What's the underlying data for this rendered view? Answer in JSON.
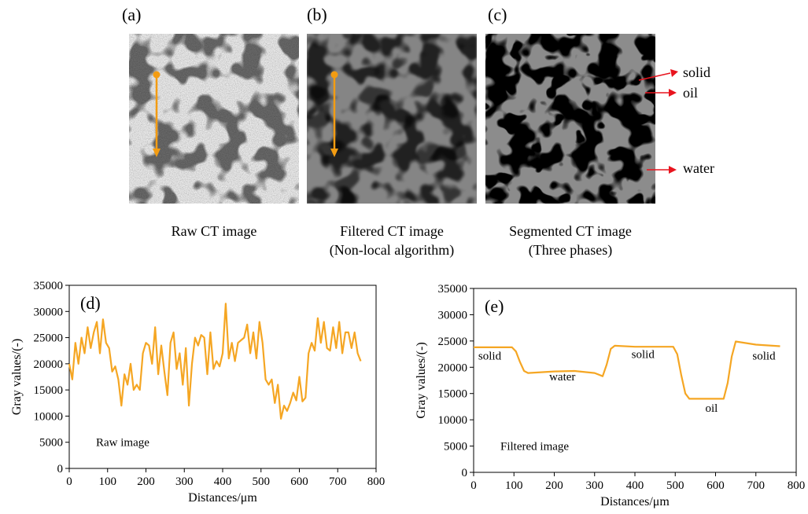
{
  "panels": {
    "a": {
      "letter": "(a)",
      "caption": "Raw CT image"
    },
    "b": {
      "letter": "(b)",
      "caption_line1": "Filtered CT image",
      "caption_line2": "(Non-local algorithm)"
    },
    "c": {
      "letter": "(c)",
      "caption_line1": "Segmented CT image",
      "caption_line2": "(Three phases)",
      "labels": [
        "solid",
        "oil",
        "water"
      ]
    }
  },
  "colors": {
    "arrow": "#F39C12",
    "line": "#F5A623",
    "solid": "#8C8C8C",
    "water": "#0A14F0",
    "oil": "#F01428",
    "label_arrow": "#E8141E"
  },
  "chart_data": [
    {
      "type": "line",
      "panel_letter": "(d)",
      "annotation": "Raw image",
      "title": "",
      "xlabel": "Distances/μm",
      "ylabel": "Gray values/(-)",
      "xlim": [
        0,
        800
      ],
      "ylim": [
        0,
        35000
      ],
      "xticks": [
        0,
        100,
        200,
        300,
        400,
        500,
        600,
        700,
        800
      ],
      "yticks": [
        0,
        5000,
        10000,
        15000,
        20000,
        25000,
        30000,
        35000
      ],
      "series": [
        {
          "x": [
            0,
            8,
            16,
            24,
            32,
            40,
            48,
            56,
            64,
            72,
            80,
            88,
            96,
            104,
            112,
            120,
            128,
            136,
            144,
            152,
            160,
            168,
            176,
            184,
            192,
            200,
            208,
            216,
            224,
            232,
            240,
            248,
            256,
            264,
            272,
            280,
            288,
            296,
            304,
            312,
            320,
            328,
            336,
            344,
            352,
            360,
            368,
            376,
            384,
            392,
            400,
            408,
            416,
            424,
            432,
            440,
            448,
            456,
            464,
            472,
            480,
            488,
            496,
            504,
            512,
            520,
            528,
            536,
            544,
            552,
            560,
            568,
            576,
            584,
            592,
            600,
            608,
            616,
            624,
            632,
            640,
            648,
            656,
            664,
            672,
            680,
            688,
            696,
            704,
            712,
            720,
            728,
            736,
            744,
            752,
            760
          ],
          "y": [
            20000,
            17000,
            24000,
            20000,
            25000,
            22000,
            27000,
            23000,
            26000,
            28000,
            22000,
            28500,
            24000,
            23000,
            18500,
            19500,
            17000,
            12000,
            18000,
            16000,
            20000,
            15000,
            16000,
            15000,
            22000,
            24000,
            23500,
            20000,
            27000,
            18000,
            23500,
            18500,
            14000,
            24000,
            26000,
            19000,
            22000,
            16000,
            23000,
            12000,
            20000,
            25000,
            23500,
            25500,
            25000,
            18000,
            26000,
            19000,
            20500,
            19500,
            22000,
            31500,
            21000,
            24000,
            20500,
            24000,
            24500,
            25000,
            27500,
            22000,
            26000,
            21000,
            28000,
            24000,
            17000,
            16000,
            17000,
            12500,
            16000,
            9500,
            12000,
            11000,
            12500,
            14500,
            13000,
            17500,
            12800,
            13500,
            22000,
            24000,
            22500,
            28700,
            24000,
            28000,
            23000,
            22500,
            27000,
            23000,
            28000,
            22000,
            26000,
            26000,
            23000,
            26000,
            22000,
            20500
          ]
        }
      ]
    },
    {
      "type": "line",
      "panel_letter": "(e)",
      "annotation": "Filtered image",
      "title": "",
      "xlabel": "Distances/μm",
      "ylabel": "Gray values/(-)",
      "xlim": [
        0,
        800
      ],
      "ylim": [
        0,
        35000
      ],
      "xticks": [
        0,
        100,
        200,
        300,
        400,
        500,
        600,
        700,
        800
      ],
      "yticks": [
        0,
        5000,
        10000,
        15000,
        20000,
        25000,
        30000,
        35000
      ],
      "region_labels": [
        {
          "text": "solid",
          "x": 40,
          "y": 21500
        },
        {
          "text": "water",
          "x": 220,
          "y": 17500
        },
        {
          "text": "solid",
          "x": 420,
          "y": 21800
        },
        {
          "text": "oil",
          "x": 590,
          "y": 11500
        },
        {
          "text": "solid",
          "x": 720,
          "y": 21500
        }
      ],
      "series": [
        {
          "x": [
            0,
            50,
            95,
            105,
            115,
            125,
            135,
            200,
            250,
            300,
            320,
            330,
            340,
            350,
            400,
            450,
            495,
            505,
            515,
            525,
            535,
            600,
            620,
            630,
            640,
            650,
            700,
            760
          ],
          "y": [
            23800,
            23800,
            23800,
            23000,
            21000,
            19300,
            18900,
            19200,
            19300,
            18900,
            18300,
            20500,
            23500,
            24100,
            23900,
            23900,
            23900,
            22500,
            18500,
            15000,
            14000,
            14000,
            14000,
            17000,
            22000,
            24900,
            24300,
            24000
          ]
        }
      ]
    }
  ]
}
